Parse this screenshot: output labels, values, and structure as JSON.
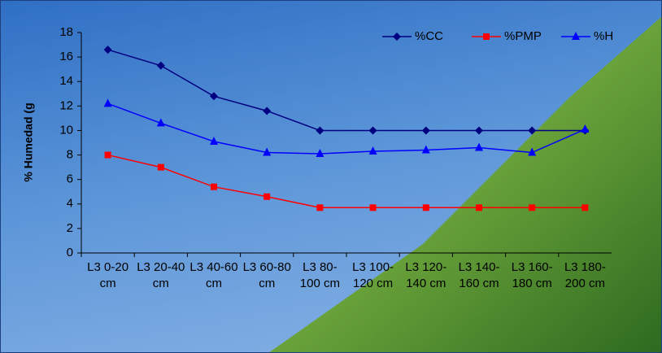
{
  "chart_data": {
    "type": "line",
    "y_label": "% Humedad (g",
    "categories": [
      "L3 0-20 cm",
      "L3 20-40 cm",
      "L3 40-60 cm",
      "L3 60-80 cm",
      "L3 80-100 cm",
      "L3 100-120 cm",
      "L3 120-140 cm",
      "L3 140-160 cm",
      "L3 160-180 cm",
      "L3 180-200 cm"
    ],
    "series": [
      {
        "name": "%CC",
        "color": "#000080",
        "marker": "diamond",
        "values": [
          16.6,
          15.3,
          12.8,
          11.6,
          10,
          10,
          10,
          10,
          10,
          10
        ]
      },
      {
        "name": "%PMP",
        "color": "#ff0000",
        "marker": "square",
        "values": [
          8,
          7,
          5.4,
          4.6,
          3.7,
          3.7,
          3.7,
          3.7,
          3.7,
          3.7
        ]
      },
      {
        "name": "%H",
        "color": "#0000ff",
        "marker": "triangle",
        "values": [
          12.2,
          10.6,
          9.1,
          8.2,
          8.1,
          8.3,
          8.4,
          8.6,
          8.2,
          10.1
        ]
      }
    ],
    "ylim": [
      0,
      18
    ],
    "yticks": [
      0,
      2,
      4,
      6,
      8,
      10,
      12,
      14,
      16,
      18
    ],
    "legend": "top-right"
  }
}
